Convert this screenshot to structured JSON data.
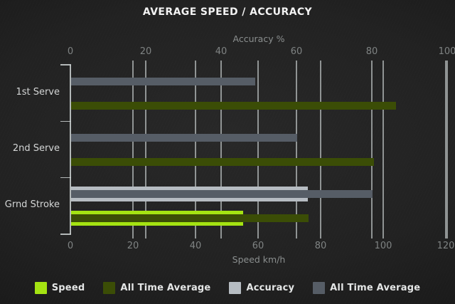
{
  "title": "AVERAGE SPEED / ACCURACY",
  "chart_data": {
    "type": "bar",
    "orientation": "horizontal",
    "categories": [
      "1st Serve",
      "2nd Serve",
      "Grnd Stroke"
    ],
    "axes": {
      "top": {
        "label": "Accuracy %",
        "ticks": [
          0,
          20,
          40,
          60,
          80,
          100
        ],
        "range": [
          0,
          100
        ]
      },
      "bottom": {
        "label": "Speed km/h",
        "ticks": [
          0,
          20,
          40,
          60,
          80,
          100,
          120
        ],
        "range": [
          0,
          120
        ]
      }
    },
    "series": [
      {
        "name": "Speed",
        "axis": "bottom",
        "role": "current",
        "color": "#a4e312",
        "values": [
          null,
          null,
          55
        ]
      },
      {
        "name": "All Time Average",
        "axis": "bottom",
        "role": "average",
        "color": "#3b4d06",
        "values": [
          104,
          97,
          76
        ]
      },
      {
        "name": "Accuracy",
        "axis": "top",
        "role": "current",
        "color": "#b6bcc2",
        "values": [
          null,
          null,
          63
        ]
      },
      {
        "name": "All Time Average",
        "axis": "top",
        "role": "average",
        "color": "#565d66",
        "values": [
          49,
          60,
          80
        ]
      }
    ],
    "legend_position": "bottom",
    "grid": true
  }
}
